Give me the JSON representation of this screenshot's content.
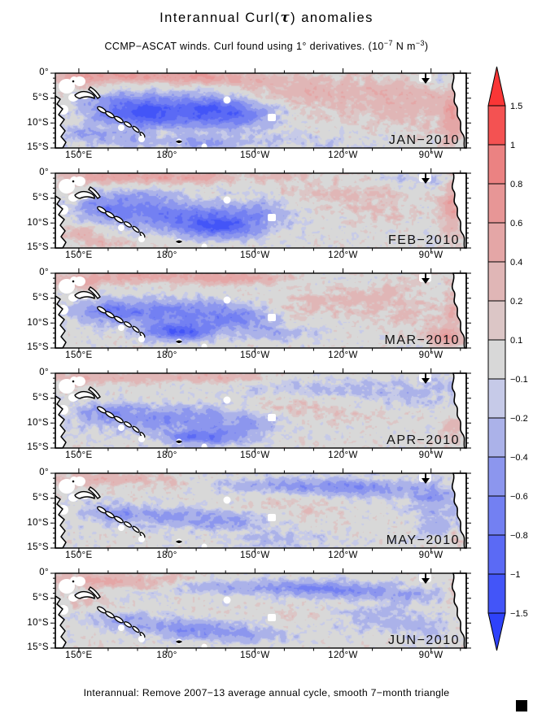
{
  "title": {
    "pre": "Interannual Curl(",
    "tau": "τ",
    "post": ") anomalies"
  },
  "subtitle": {
    "p1": "CCMP−ASCAT winds. Curl found using 1° derivatives. (10",
    "sup1": "−7",
    "p2": " N m",
    "sup2": "−3",
    "p3": ")"
  },
  "caption": "Interannual: Remove 2007−13 average annual cycle, smooth 7−month triangle",
  "chart_data": {
    "type": "heatmap",
    "title": "Interannual Curl(tau) anomalies",
    "units": "10^-7 N m^-3",
    "x_axis": {
      "ticks": [
        "150°E",
        "180°",
        "150°W",
        "120°W",
        "90°W"
      ]
    },
    "y_axis": {
      "ticks": [
        "0°",
        "5°S",
        "10°S",
        "15°S"
      ]
    },
    "colorbar": {
      "labels": [
        "1.5",
        "1",
        "0.8",
        "0.6",
        "0.4",
        "0.2",
        "0.1",
        "−0.1",
        "−0.2",
        "−0.4",
        "−0.6",
        "−0.8",
        "−1",
        "−1.5"
      ],
      "levels": [
        -1.5,
        -1,
        -0.8,
        -0.6,
        -0.4,
        -0.2,
        -0.1,
        0.1,
        0.2,
        0.4,
        0.6,
        0.8,
        1,
        1.5
      ],
      "colors": [
        "#2e42fa",
        "#4355f8",
        "#5b6af5",
        "#7380f2",
        "#8c96ee",
        "#abb2e9",
        "#c6cae8",
        "#d8d8d8",
        "#dcc6c6",
        "#e0b6b6",
        "#e4a6a6",
        "#e79696",
        "#eb8282",
        "#f45252",
        "#fa3636"
      ]
    },
    "panels": [
      {
        "label": "JAN−2010",
        "blobs": [
          [
            0.18,
            0.03,
            0.2,
            0.09,
            0.55
          ],
          [
            0.38,
            0.06,
            0.12,
            0.08,
            0.4
          ],
          [
            0.05,
            0.1,
            0.06,
            0.1,
            0.3
          ],
          [
            0.72,
            0.28,
            0.25,
            0.28,
            0.26
          ],
          [
            0.55,
            0.2,
            0.12,
            0.15,
            0.18
          ],
          [
            0.88,
            0.45,
            0.12,
            0.3,
            0.18
          ],
          [
            0.3,
            0.48,
            0.18,
            0.2,
            -0.75
          ],
          [
            0.42,
            0.55,
            0.1,
            0.22,
            -0.55
          ],
          [
            0.16,
            0.42,
            0.09,
            0.16,
            -0.45
          ],
          [
            0.22,
            0.62,
            0.1,
            0.15,
            -0.4
          ],
          [
            0.07,
            0.8,
            0.06,
            0.12,
            -0.35
          ],
          [
            0.18,
            0.88,
            0.07,
            0.1,
            -0.3
          ],
          [
            0.35,
            0.92,
            0.08,
            0.08,
            -0.45
          ],
          [
            0.6,
            0.9,
            0.2,
            0.1,
            -0.15
          ],
          [
            0.965,
            0.6,
            0.025,
            0.35,
            0.5
          ],
          [
            0.93,
            0.1,
            0.05,
            0.1,
            -0.25
          ]
        ]
      },
      {
        "label": "FEB−2010",
        "blobs": [
          [
            0.15,
            0.04,
            0.15,
            0.09,
            0.5
          ],
          [
            0.35,
            0.05,
            0.1,
            0.07,
            0.45
          ],
          [
            0.55,
            0.04,
            0.08,
            0.06,
            0.2
          ],
          [
            0.28,
            0.55,
            0.17,
            0.18,
            -0.7
          ],
          [
            0.4,
            0.72,
            0.1,
            0.15,
            -0.85
          ],
          [
            0.13,
            0.45,
            0.08,
            0.14,
            -0.5
          ],
          [
            0.5,
            0.5,
            0.08,
            0.18,
            -0.35
          ],
          [
            0.2,
            0.3,
            0.1,
            0.1,
            -0.3
          ],
          [
            0.68,
            0.28,
            0.15,
            0.18,
            0.2
          ],
          [
            0.8,
            0.5,
            0.1,
            0.2,
            0.12
          ],
          [
            0.965,
            0.45,
            0.025,
            0.4,
            0.55
          ],
          [
            0.06,
            0.82,
            0.05,
            0.1,
            0.35
          ],
          [
            0.13,
            0.93,
            0.05,
            0.07,
            0.3
          ],
          [
            0.9,
            0.08,
            0.08,
            0.08,
            -0.2
          ]
        ]
      },
      {
        "label": "MAR−2010",
        "blobs": [
          [
            0.22,
            0.04,
            0.24,
            0.09,
            0.5
          ],
          [
            0.45,
            0.07,
            0.1,
            0.08,
            0.35
          ],
          [
            0.06,
            0.13,
            0.05,
            0.08,
            0.3
          ],
          [
            0.27,
            0.52,
            0.18,
            0.18,
            -0.65
          ],
          [
            0.3,
            0.78,
            0.08,
            0.12,
            -0.95
          ],
          [
            0.12,
            0.5,
            0.07,
            0.14,
            -0.4
          ],
          [
            0.45,
            0.6,
            0.09,
            0.18,
            -0.45
          ],
          [
            0.55,
            0.8,
            0.08,
            0.1,
            -0.3
          ],
          [
            0.62,
            0.42,
            0.14,
            0.18,
            0.2
          ],
          [
            0.78,
            0.3,
            0.12,
            0.15,
            0.16
          ],
          [
            0.85,
            0.55,
            0.1,
            0.2,
            0.14
          ],
          [
            0.95,
            0.85,
            0.04,
            0.12,
            0.6
          ],
          [
            0.965,
            0.5,
            0.02,
            0.25,
            0.3
          ],
          [
            0.87,
            0.12,
            0.06,
            0.08,
            0.2
          ]
        ]
      },
      {
        "label": "APR−2010",
        "blobs": [
          [
            0.2,
            0.04,
            0.22,
            0.08,
            0.32
          ],
          [
            0.42,
            0.05,
            0.09,
            0.07,
            0.25
          ],
          [
            0.05,
            0.12,
            0.05,
            0.09,
            0.25
          ],
          [
            0.28,
            0.6,
            0.18,
            0.18,
            -0.55
          ],
          [
            0.35,
            0.85,
            0.09,
            0.1,
            -0.75
          ],
          [
            0.12,
            0.52,
            0.07,
            0.13,
            -0.35
          ],
          [
            0.47,
            0.7,
            0.08,
            0.15,
            -0.35
          ],
          [
            0.68,
            0.18,
            0.2,
            0.12,
            -0.22
          ],
          [
            0.85,
            0.3,
            0.12,
            0.15,
            -0.2
          ],
          [
            0.95,
            0.15,
            0.05,
            0.1,
            -0.18
          ],
          [
            0.58,
            0.45,
            0.12,
            0.15,
            0.14
          ],
          [
            0.75,
            0.55,
            0.1,
            0.12,
            0.1
          ],
          [
            0.965,
            0.75,
            0.025,
            0.2,
            0.35
          ]
        ]
      },
      {
        "label": "MAY−2010",
        "blobs": [
          [
            0.07,
            0.1,
            0.08,
            0.1,
            0.3
          ],
          [
            0.2,
            0.06,
            0.09,
            0.08,
            0.28
          ],
          [
            0.3,
            0.15,
            0.07,
            0.08,
            0.18
          ],
          [
            0.55,
            0.16,
            0.2,
            0.1,
            -0.38
          ],
          [
            0.75,
            0.2,
            0.15,
            0.12,
            -0.4
          ],
          [
            0.92,
            0.3,
            0.07,
            0.15,
            -0.35
          ],
          [
            0.28,
            0.58,
            0.16,
            0.14,
            -0.4
          ],
          [
            0.14,
            0.52,
            0.08,
            0.12,
            -0.3
          ],
          [
            0.42,
            0.65,
            0.1,
            0.12,
            -0.3
          ],
          [
            0.93,
            0.6,
            0.06,
            0.25,
            -0.3
          ],
          [
            0.55,
            0.88,
            0.12,
            0.1,
            -0.25
          ],
          [
            0.5,
            0.42,
            0.1,
            0.12,
            0.12
          ],
          [
            0.65,
            0.5,
            0.08,
            0.1,
            0.1
          ],
          [
            0.97,
            0.85,
            0.015,
            0.1,
            0.3
          ]
        ]
      },
      {
        "label": "JUN−2010",
        "blobs": [
          [
            0.08,
            0.08,
            0.1,
            0.09,
            0.4
          ],
          [
            0.2,
            0.12,
            0.09,
            0.09,
            0.3
          ],
          [
            0.3,
            0.06,
            0.07,
            0.06,
            0.2
          ],
          [
            0.5,
            0.18,
            0.2,
            0.1,
            -0.4
          ],
          [
            0.68,
            0.22,
            0.14,
            0.1,
            -0.45
          ],
          [
            0.85,
            0.3,
            0.1,
            0.12,
            -0.3
          ],
          [
            0.3,
            0.72,
            0.14,
            0.13,
            -0.45
          ],
          [
            0.45,
            0.82,
            0.12,
            0.1,
            -0.4
          ],
          [
            0.15,
            0.6,
            0.08,
            0.1,
            -0.3
          ],
          [
            0.78,
            0.6,
            0.1,
            0.15,
            -0.3
          ],
          [
            0.6,
            0.55,
            0.08,
            0.1,
            0.12
          ],
          [
            0.07,
            0.4,
            0.05,
            0.08,
            0.2
          ],
          [
            0.97,
            0.3,
            0.02,
            0.2,
            0.35
          ],
          [
            0.9,
            0.75,
            0.06,
            0.15,
            -0.25
          ]
        ]
      }
    ]
  }
}
